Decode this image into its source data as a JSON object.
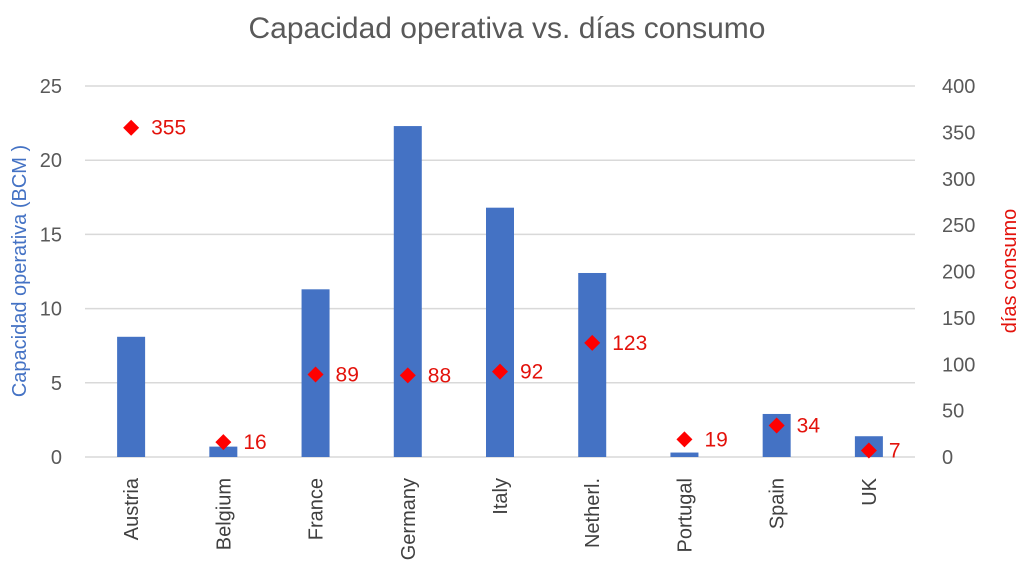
{
  "chart_data": {
    "type": "bar",
    "title": "Capacidad operativa vs. días consumo",
    "categories": [
      "Austria",
      "Belgium",
      "France",
      "Germany",
      "Italy",
      "Netherl.",
      "Portugal",
      "Spain",
      "UK"
    ],
    "series": [
      {
        "name": "Capacidad operativa (BCM )",
        "type": "bar",
        "axis": "left",
        "color": "#4472c4",
        "values": [
          8.1,
          0.7,
          11.3,
          22.3,
          16.8,
          12.4,
          0.3,
          2.9,
          1.4
        ]
      },
      {
        "name": "días consumo",
        "type": "scatter",
        "marker": "diamond",
        "axis": "right",
        "color": "#ff0000",
        "values": [
          355,
          16,
          89,
          88,
          92,
          123,
          19,
          34,
          7
        ],
        "labels": [
          "355",
          "16",
          "89",
          "88",
          "92",
          "123",
          "19",
          "34",
          "7"
        ]
      }
    ],
    "y_left": {
      "label": "Capacidad operativa (BCM )",
      "ylim": [
        0,
        25
      ],
      "ticks": [
        "0",
        "5",
        "10",
        "15",
        "20",
        "25"
      ]
    },
    "y_right": {
      "label": "días consumo",
      "ylim": [
        0,
        400
      ],
      "ticks": [
        "0",
        "50",
        "100",
        "150",
        "200",
        "250",
        "300",
        "350",
        "400"
      ]
    },
    "grid": true,
    "legend": false
  }
}
